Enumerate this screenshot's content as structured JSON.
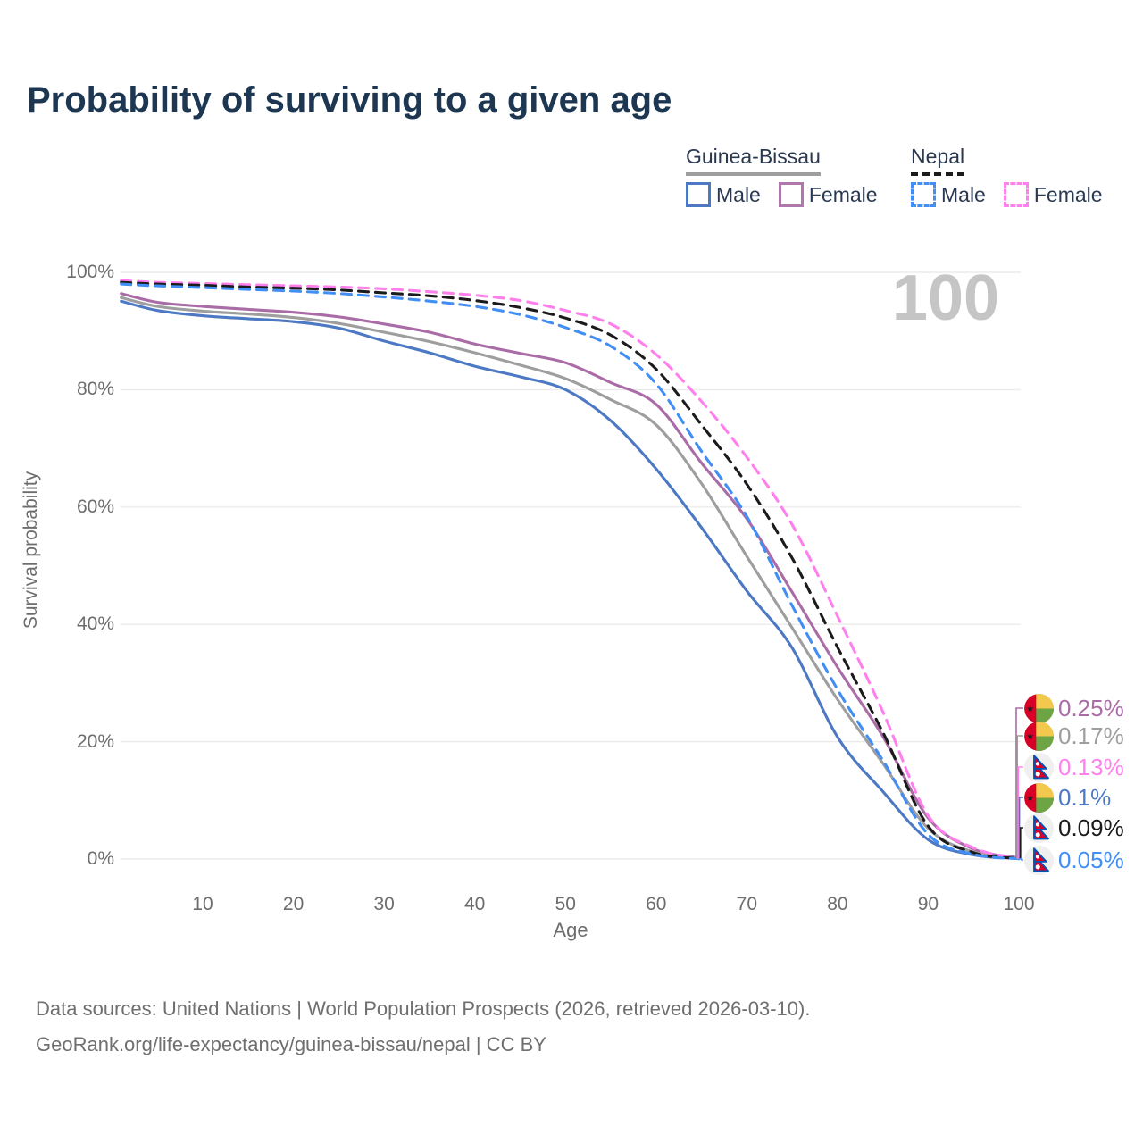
{
  "title": "Probability of surviving to a given age",
  "watermark": "100",
  "legend": {
    "groups": [
      {
        "label": "Guinea-Bissau",
        "line_style": "solid",
        "underline_color": "#9e9e9e",
        "items": [
          {
            "label": "Male",
            "color": "#4d79c4"
          },
          {
            "label": "Female",
            "color": "#b077ad"
          }
        ]
      },
      {
        "label": "Nepal",
        "line_style": "dashed",
        "underline_color": "#1b1b1b",
        "items": [
          {
            "label": "Male",
            "color": "#418ef5"
          },
          {
            "label": "Female",
            "color": "#ff80ec"
          }
        ]
      }
    ]
  },
  "chart_data": {
    "type": "line",
    "title": "Probability of surviving to a given age",
    "xlabel": "Age",
    "ylabel": "Survival probability",
    "xlim": [
      0,
      100
    ],
    "ylim": [
      0,
      100
    ],
    "grid": "horizontal",
    "legend_position": "top-right",
    "x_ticks": [
      10,
      20,
      30,
      40,
      50,
      60,
      70,
      80,
      90,
      100
    ],
    "y_ticks": [
      {
        "value": 0,
        "label": "0%"
      },
      {
        "value": 20,
        "label": "20%"
      },
      {
        "value": 40,
        "label": "40%"
      },
      {
        "value": 60,
        "label": "60%"
      },
      {
        "value": 80,
        "label": "80%"
      },
      {
        "value": 100,
        "label": "100%"
      }
    ],
    "x": [
      1,
      5,
      10,
      15,
      20,
      25,
      30,
      35,
      40,
      45,
      50,
      55,
      60,
      65,
      70,
      75,
      80,
      85,
      90,
      95,
      100
    ],
    "series": [
      {
        "name": "Guinea-Bissau Female",
        "country": "guinea-bissau",
        "sex": "Female",
        "color": "#aa6ca6",
        "dash": false,
        "end_label": "0.25%",
        "end_label_color": "#aa6ca6",
        "values": [
          96.4,
          94.9,
          94.2,
          93.7,
          93.2,
          92.4,
          91.2,
          89.8,
          87.8,
          86.2,
          84.6,
          81.2,
          77.5,
          67.5,
          58.0,
          45.5,
          32.7,
          20.9,
          7.0,
          1.7,
          0.25
        ]
      },
      {
        "name": "Guinea-Bissau Both sexes",
        "country": "guinea-bissau",
        "sex": "Both",
        "color": "#9e9e9e",
        "dash": false,
        "end_label": "0.17%",
        "end_label_color": "#9e9e9e",
        "values": [
          95.7,
          94.2,
          93.4,
          92.9,
          92.3,
          91.3,
          89.8,
          88.2,
          86.3,
          84.2,
          81.9,
          78.3,
          74.0,
          64.0,
          51.6,
          39.4,
          27.2,
          16.3,
          5.2,
          1.2,
          0.17
        ]
      },
      {
        "name": "Guinea-Bissau Male",
        "country": "guinea-bissau",
        "sex": "Male",
        "color": "#4d79c4",
        "dash": false,
        "end_label": "0.1%",
        "end_label_color": "#4d79c4",
        "values": [
          95.1,
          93.5,
          92.6,
          92.1,
          91.6,
          90.5,
          88.3,
          86.3,
          84.0,
          82.2,
          80.0,
          74.7,
          66.5,
          56.5,
          45.7,
          36.0,
          20.8,
          11.5,
          3.3,
          0.7,
          0.1
        ]
      },
      {
        "name": "Nepal Female",
        "country": "nepal",
        "sex": "Female",
        "color": "#ff80ec",
        "dash": true,
        "end_label": "0.13%",
        "end_label_color": "#ff80ec",
        "values": [
          98.6,
          98.3,
          98.1,
          97.9,
          97.7,
          97.5,
          97.2,
          96.7,
          96.1,
          95.2,
          93.5,
          91.2,
          86.0,
          78.0,
          68.5,
          57.0,
          41.4,
          25.1,
          7.4,
          1.9,
          0.13
        ]
      },
      {
        "name": "Nepal Both sexes",
        "country": "nepal",
        "sex": "Both",
        "color": "#1b1b1b",
        "dash": true,
        "end_label": "0.09%",
        "end_label_color": "#1b1b1b",
        "values": [
          98.3,
          98.0,
          97.8,
          97.5,
          97.3,
          97.0,
          96.5,
          96.0,
          95.2,
          94.0,
          92.2,
          89.3,
          83.5,
          74.0,
          63.9,
          51.3,
          36.1,
          21.6,
          5.6,
          1.1,
          0.09
        ]
      },
      {
        "name": "Nepal Male",
        "country": "nepal",
        "sex": "Male",
        "color": "#418ef5",
        "dash": true,
        "end_label": "0.05%",
        "end_label_color": "#418ef5",
        "values": [
          98.0,
          97.7,
          97.4,
          97.1,
          96.8,
          96.4,
          95.8,
          95.1,
          94.2,
          92.8,
          90.6,
          87.4,
          81.0,
          69.5,
          58.4,
          43.2,
          28.9,
          16.8,
          4.2,
          0.8,
          0.05
        ]
      }
    ]
  },
  "footer": {
    "line1": "Data sources: United Nations | World Population Prospects (2026, retrieved 2026-03-10).",
    "line2": "GeoRank.org/life-expectancy/guinea-bissau/nepal | CC BY"
  }
}
